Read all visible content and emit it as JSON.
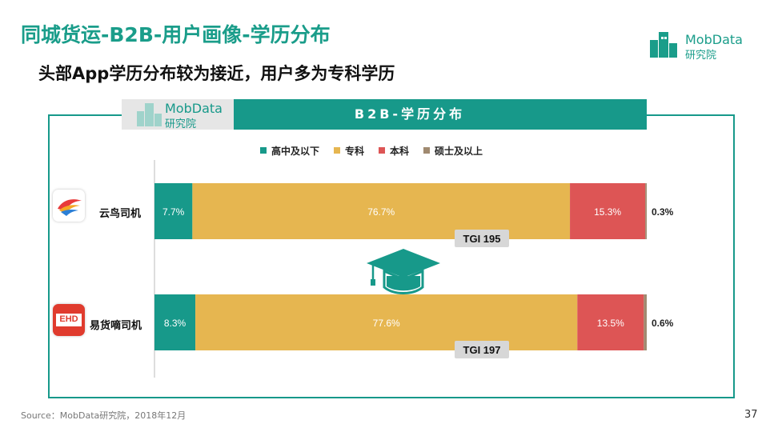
{
  "header": {
    "title": "同城货运-B2B-用户画像-学历分布",
    "subtitle": "头部App学历分布较为接近，用户多为专科学历"
  },
  "brand": {
    "name": "MobData",
    "sub": "研究院"
  },
  "panel": {
    "banner_brand": "MobData",
    "banner_brand_sub": "研究院",
    "banner_title": "B2B-学历分布"
  },
  "colors": {
    "accent": "#17998a",
    "high_school": "#17998a",
    "junior_college": "#e6b650",
    "bachelor": "#dd5555",
    "master": "#a08a70",
    "tgi_badge": "#d7d7d7"
  },
  "icons": [
    "mobdata-logo-icon",
    "yunniao-app-icon",
    "ehd-app-icon",
    "graduation-cap-icon"
  ],
  "apps": [
    {
      "name": "云鸟司机",
      "logo_text": ""
    },
    {
      "name": "易货嘀司机",
      "logo_text": "EHD"
    }
  ],
  "chart_data": {
    "type": "bar",
    "orientation": "horizontal",
    "stacked": true,
    "percent": true,
    "categories": [
      "云鸟司机",
      "易货嘀司机"
    ],
    "series": [
      {
        "name": "高中及以下",
        "values": [
          7.7,
          8.3
        ],
        "labels": [
          "7.7%",
          "8.3%"
        ],
        "color": "#17998a"
      },
      {
        "name": "专科",
        "values": [
          76.7,
          77.6
        ],
        "labels": [
          "76.7%",
          "77.6%"
        ],
        "color": "#e6b650"
      },
      {
        "name": "本科",
        "values": [
          15.3,
          13.5
        ],
        "labels": [
          "15.3%",
          "13.5%"
        ],
        "color": "#dd5555"
      },
      {
        "name": "硕士及以上",
        "values": [
          0.3,
          0.6
        ],
        "labels": [
          "0.3%",
          "0.6%"
        ],
        "color": "#a08a70"
      }
    ],
    "tgi": [
      "TGI 195",
      "TGI 197"
    ],
    "legend_position": "top",
    "grid": false
  },
  "footer": {
    "source": "Source：MobData研究院，2018年12月",
    "page_number": "37"
  }
}
